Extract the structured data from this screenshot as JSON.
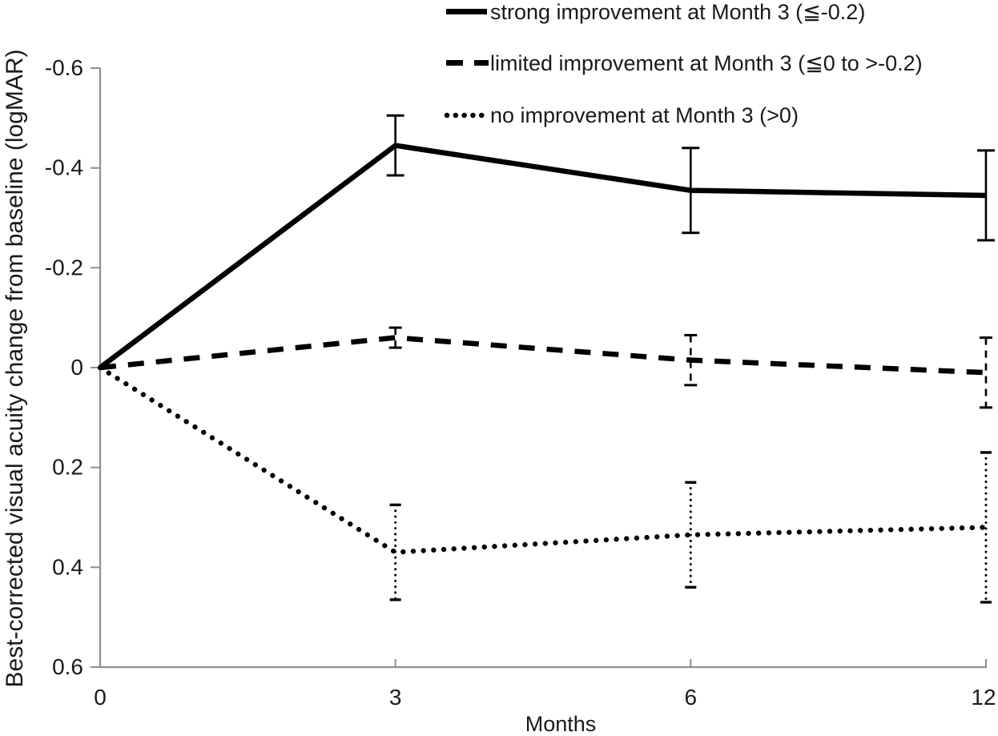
{
  "chart_data": {
    "type": "line",
    "title": "",
    "xlabel": "Months",
    "ylabel": "Best-corrected visual acuity change from baseline (logMAR)",
    "x_categories": [
      "0",
      "3",
      "6",
      "12"
    ],
    "y_ticks": [
      "-0.6",
      "-0.4",
      "-0.2",
      "0",
      "0.2",
      "0.4",
      "0.6"
    ],
    "ylim": [
      -0.6,
      0.6
    ],
    "y_axis_inverted": true,
    "grid": false,
    "legend_position": "top-right",
    "line_color": "#000000",
    "axis_color": "#8f8f8f",
    "series": [
      {
        "name": "strong improvement at Month 3 (≦-0.2)",
        "style": "solid",
        "x": [
          0,
          3,
          6,
          12
        ],
        "values": [
          0,
          -0.445,
          -0.355,
          -0.345
        ],
        "errors": [
          null,
          0.06,
          0.085,
          0.09
        ]
      },
      {
        "name": "limited improvement  at Month 3 (≦0 to >-0.2)",
        "style": "dashed",
        "x": [
          0,
          3,
          6,
          12
        ],
        "values": [
          0,
          -0.06,
          -0.015,
          0.01
        ],
        "errors": [
          null,
          0.02,
          0.05,
          0.07
        ]
      },
      {
        "name": "no improvement at Month 3 (>0)",
        "style": "dotted",
        "x": [
          0,
          3,
          6,
          12
        ],
        "values": [
          0,
          0.37,
          0.335,
          0.32
        ],
        "errors": [
          null,
          0.095,
          0.105,
          0.15
        ]
      }
    ]
  }
}
